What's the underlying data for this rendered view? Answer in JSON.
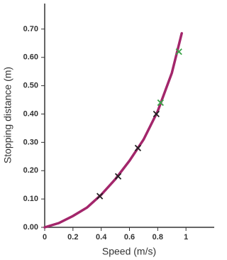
{
  "chart_data": {
    "type": "scatter",
    "x_label": "Speed (m/s)",
    "y_label": "Stopping distance (m)",
    "xlim": [
      0,
      1.2
    ],
    "ylim": [
      0,
      0.79
    ],
    "xticks": [
      0,
      0.2,
      0.4,
      0.6,
      0.8,
      1
    ],
    "yticks": [
      {
        "value": 0,
        "label": "0.00"
      },
      {
        "value": 0.1,
        "label": "0.10"
      },
      {
        "value": 0.2,
        "label": "0.20"
      },
      {
        "value": 0.3,
        "label": "0.30"
      },
      {
        "value": 0.4,
        "label": "0.40"
      },
      {
        "value": 0.5,
        "label": "0.50"
      },
      {
        "value": 0.6,
        "label": "0.60"
      },
      {
        "value": 0.7,
        "label": "0.70"
      }
    ],
    "curve": {
      "color": "#a3266b",
      "x": [
        0,
        0.1,
        0.2,
        0.3,
        0.4,
        0.5,
        0.6,
        0.7,
        0.8,
        0.9,
        0.97
      ],
      "values": [
        0,
        0.015,
        0.04,
        0.07,
        0.115,
        0.17,
        0.235,
        0.31,
        0.41,
        0.545,
        0.685
      ]
    },
    "series": [
      {
        "color": "#222222",
        "x": [
          0.39,
          0.52,
          0.66,
          0.79
        ],
        "values": [
          0.11,
          0.18,
          0.28,
          0.4
        ]
      },
      {
        "color": "#3aa348",
        "x": [
          0.82,
          0.95
        ],
        "values": [
          0.44,
          0.62
        ]
      }
    ]
  }
}
